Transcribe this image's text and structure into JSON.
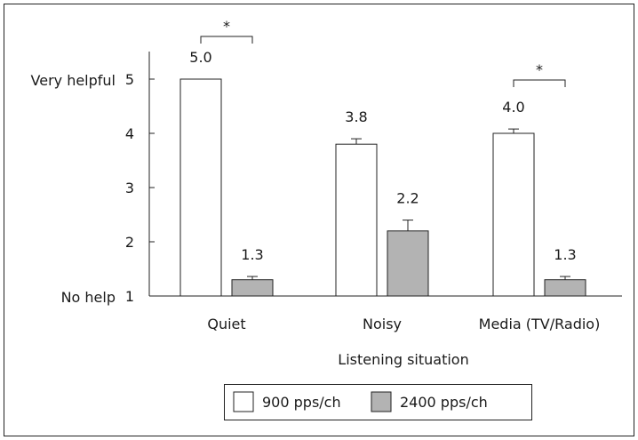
{
  "chart_data": {
    "type": "bar",
    "title": "",
    "xlabel": "Listening situation",
    "ylabel": "",
    "ylim": [
      1,
      5
    ],
    "yticks": [
      "1",
      "2",
      "3",
      "4",
      "5"
    ],
    "y_end_labels": {
      "top": "Very helpful",
      "bottom": "No help"
    },
    "categories": [
      "Quiet",
      "Noisy",
      "Media (TV/Radio)"
    ],
    "series": [
      {
        "name": "900 pps/ch",
        "values": [
          5.0,
          3.8,
          4.0
        ],
        "errors": [
          0.0,
          0.1,
          0.08
        ],
        "labels": [
          "5.0",
          "3.8",
          "4.0"
        ],
        "color": "#ffffff"
      },
      {
        "name": "2400 pps/ch",
        "values": [
          1.3,
          2.2,
          1.3
        ],
        "errors": [
          0.06,
          0.2,
          0.06
        ],
        "labels": [
          "1.3",
          "2.2",
          "1.3"
        ],
        "color": "#b3b3b3"
      }
    ],
    "significance": [
      {
        "category_index": 0,
        "label": "*"
      },
      {
        "category_index": 2,
        "label": "*"
      }
    ],
    "legend_placement": "bottom-center",
    "grid": false
  }
}
